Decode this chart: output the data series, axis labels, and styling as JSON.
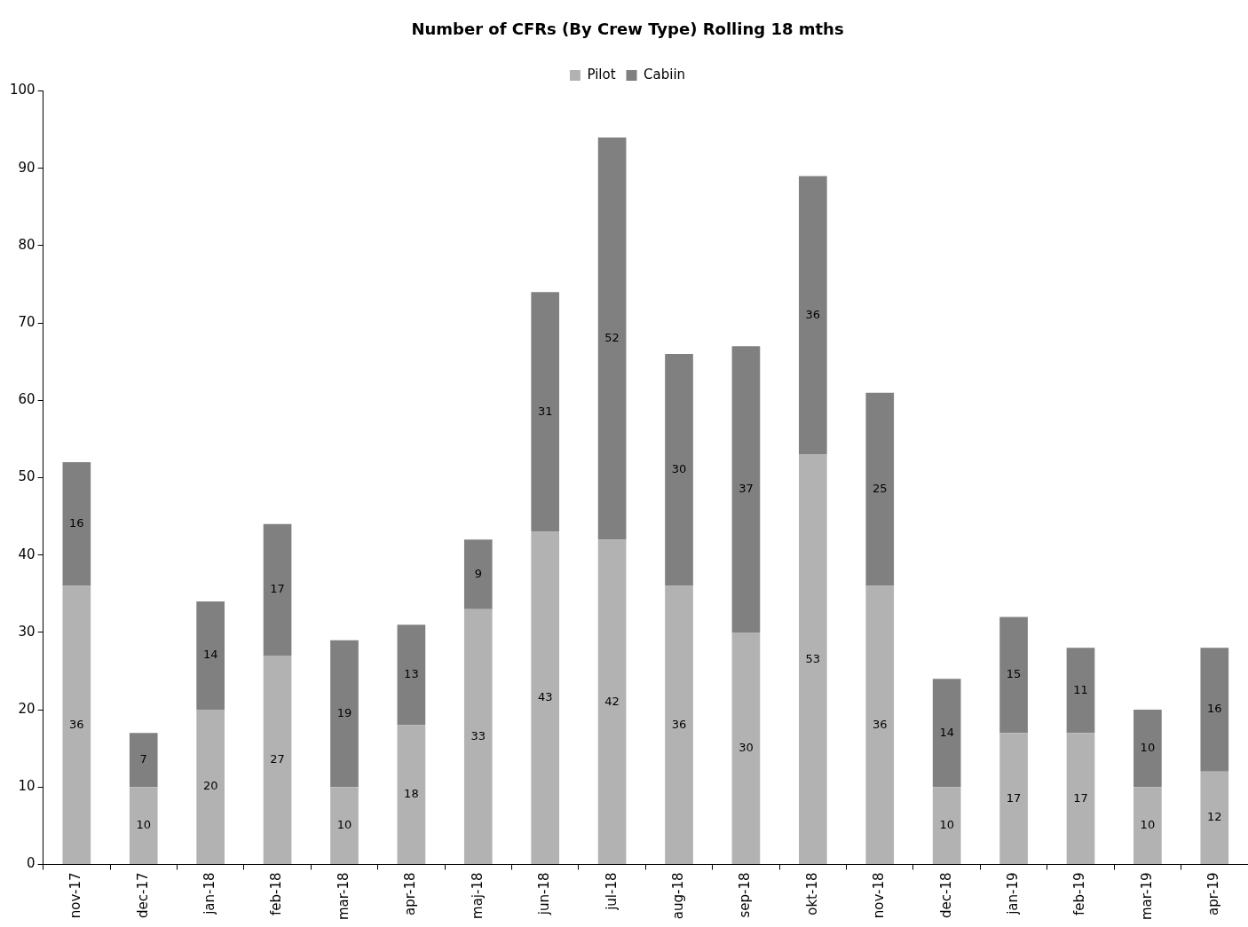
{
  "chart_data": {
    "type": "bar",
    "title": "Number of CFRs (By Crew Type) Rolling 18 mths",
    "categories": [
      "nov-17",
      "dec-17",
      "jan-18",
      "feb-18",
      "mar-18",
      "apr-18",
      "maj-18",
      "jun-18",
      "jul-18",
      "aug-18",
      "sep-18",
      "okt-18",
      "nov-18",
      "dec-18",
      "jan-19",
      "feb-19",
      "mar-19",
      "apr-19"
    ],
    "series": [
      {
        "name": "Pilot",
        "color": "#b2b2b2",
        "values": [
          36,
          10,
          20,
          27,
          10,
          18,
          33,
          43,
          42,
          36,
          30,
          53,
          36,
          10,
          17,
          17,
          10,
          12
        ]
      },
      {
        "name": "Cabiin",
        "color": "#808080",
        "values": [
          16,
          7,
          14,
          17,
          19,
          13,
          9,
          31,
          52,
          30,
          37,
          36,
          25,
          14,
          15,
          11,
          10,
          16
        ]
      }
    ],
    "stacked": true,
    "ylim": [
      0,
      100
    ],
    "yticks": [
      0,
      10,
      20,
      30,
      40,
      50,
      60,
      70,
      80,
      90,
      100
    ],
    "grid": false,
    "legend": "top",
    "data_labels": true
  }
}
